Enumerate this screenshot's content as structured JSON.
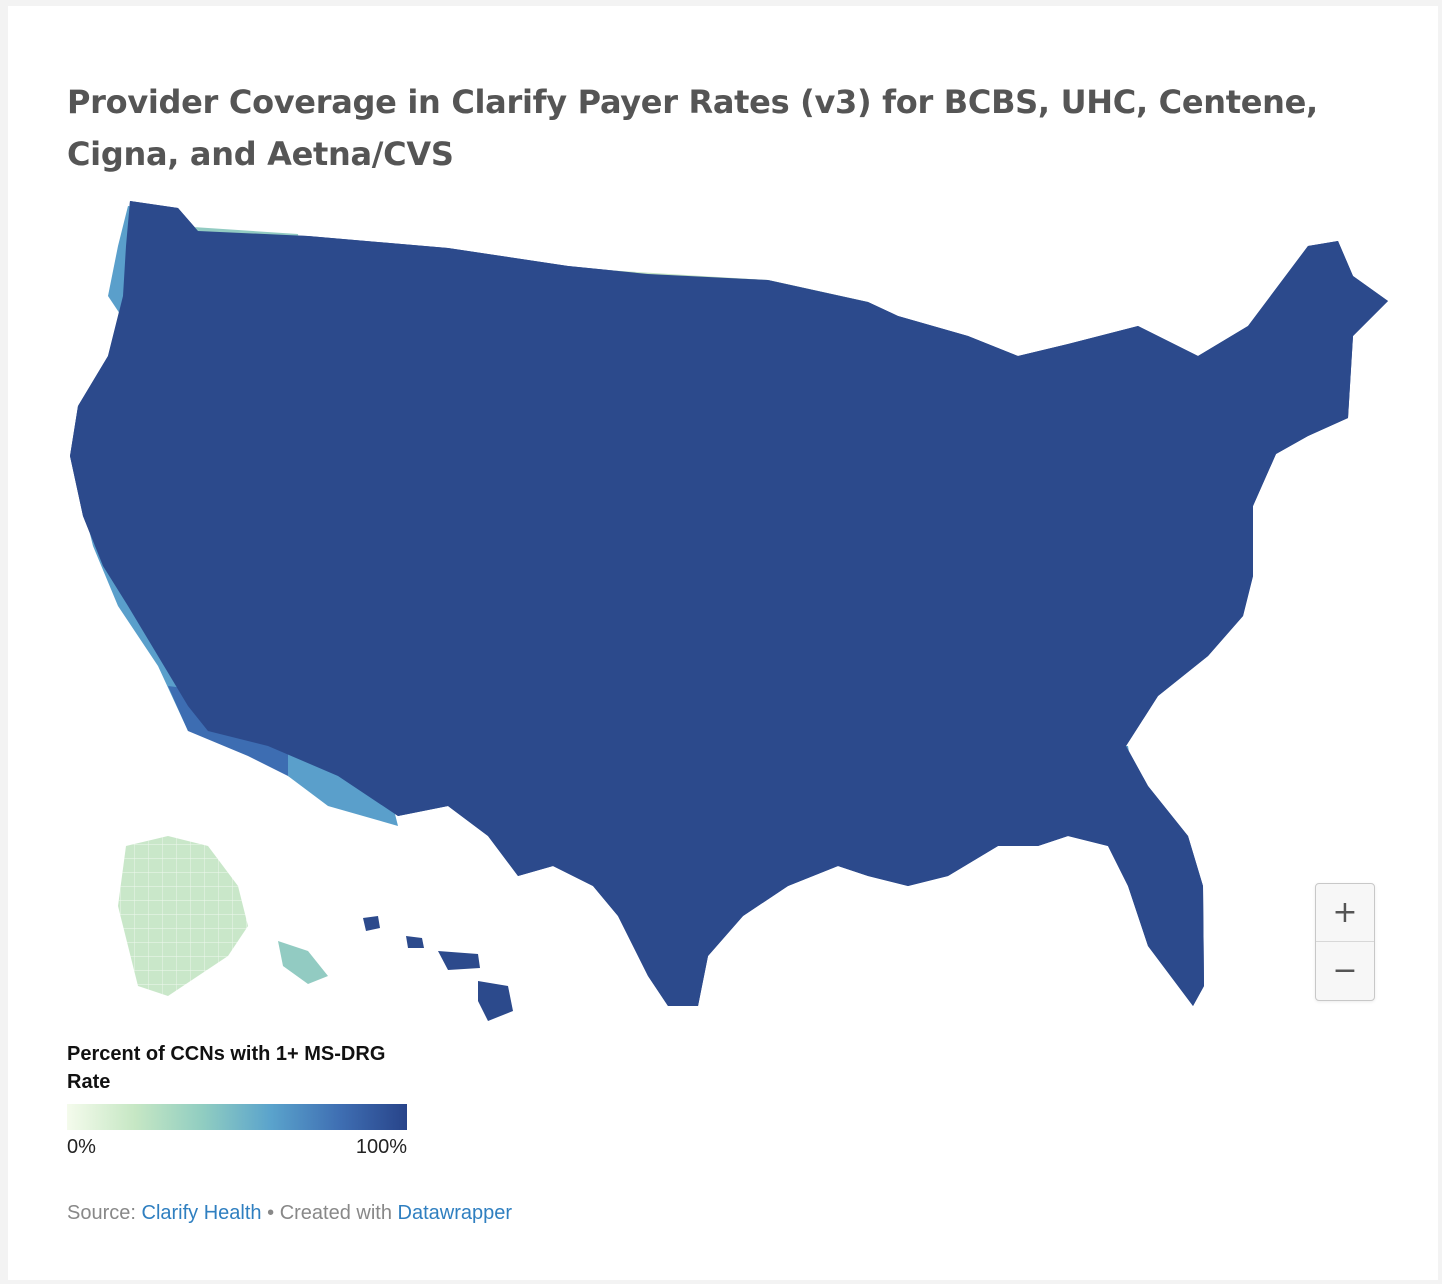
{
  "title": "Provider Coverage in Clarify Payer Rates (v3) for BCBS, UHC, Centene, Cigna, and Aetna/CVS",
  "legend": {
    "title": "Percent of CCNs with 1+ MS-DRG Rate",
    "min_label": "0%",
    "max_label": "100%",
    "colors": [
      "#f4fbec",
      "#c6e7c4",
      "#90cdc1",
      "#5aa3cc",
      "#3f6fb3",
      "#28448a"
    ]
  },
  "zoom": {
    "in_label": "+",
    "out_label": "−"
  },
  "footer": {
    "source_prefix": "Source:",
    "source_link": "Clarify Health",
    "separator": "•",
    "created_prefix": "Created with",
    "created_link": "Datawrapper"
  },
  "map": {
    "fill_classes": {
      "very_low": "#eef7e2",
      "low": "#c3e4c3",
      "mid_low": "#92cbc2",
      "mid": "#5a9fcb",
      "high": "#3d6db2",
      "very_high": "#2c4a8c",
      "no_data": "#ffffff"
    },
    "land_color": "#2c4a8c",
    "border_color": "#ffffff"
  }
}
